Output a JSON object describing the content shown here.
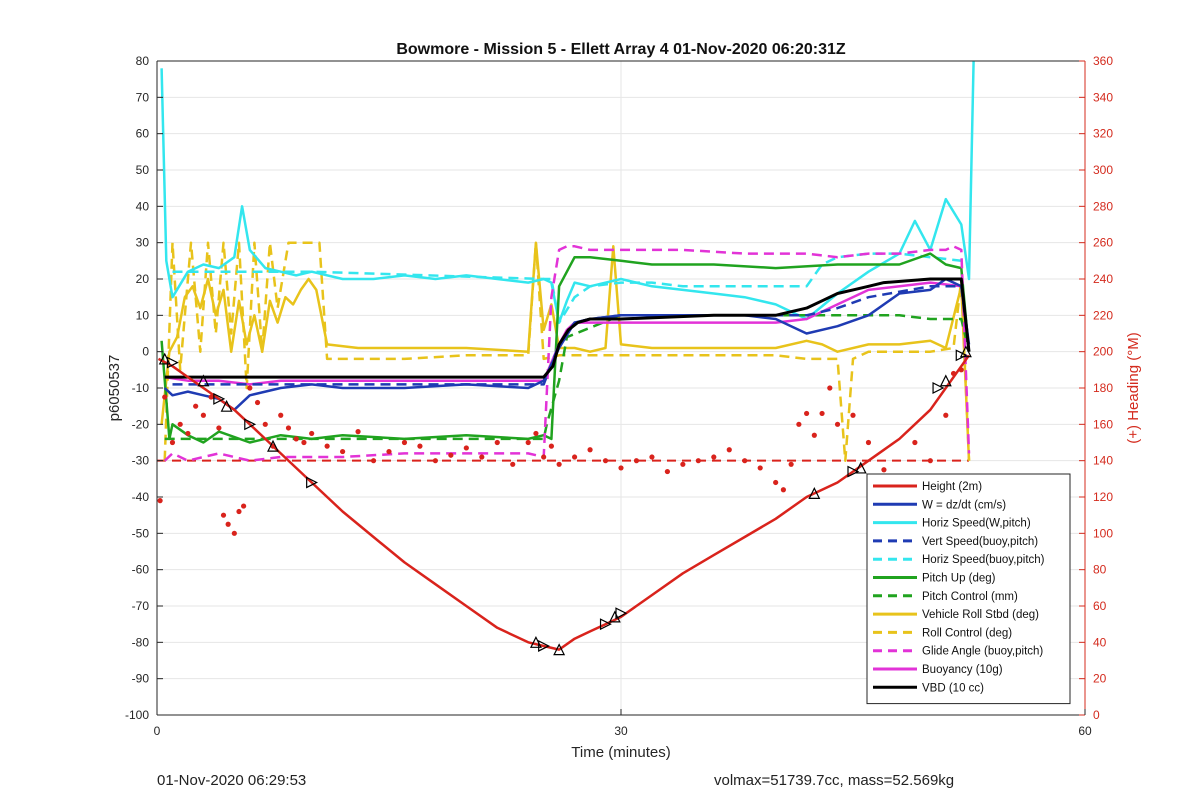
{
  "chart_data": {
    "type": "line",
    "title": "Bowmore - Mission 5 - Ellett Array 4 01-Nov-2020 06:20:31Z",
    "xlabel": "Time (minutes)",
    "ylabel": "p6050537",
    "y2label": "(+) Heading (°M)",
    "xlim": [
      0,
      60
    ],
    "ylim": [
      -100,
      80
    ],
    "y2lim": [
      0,
      360
    ],
    "xticks": [
      0,
      30,
      60
    ],
    "yticks": [
      -100,
      -90,
      -80,
      -70,
      -60,
      -50,
      -40,
      -30,
      -20,
      -10,
      0,
      10,
      20,
      30,
      40,
      50,
      60,
      70,
      80
    ],
    "y2ticks": [
      0,
      20,
      40,
      60,
      80,
      100,
      120,
      140,
      160,
      180,
      200,
      220,
      240,
      260,
      280,
      300,
      320,
      340,
      360
    ],
    "grid": true,
    "legend_position": "bottom-right",
    "colors": {
      "axes": "#262626",
      "right_axis": "#d42b1e",
      "grid": "#e6e6e6"
    },
    "series": [
      {
        "name": "Height (2m)",
        "color": "#d9231c",
        "style": "solid",
        "x": [
          0.1,
          1,
          2,
          3,
          4,
          5,
          6,
          7,
          8,
          10,
          12,
          14,
          16,
          18,
          20,
          22,
          24,
          25,
          26,
          27,
          28,
          29,
          30,
          32,
          34,
          36,
          38,
          40,
          42,
          44,
          45,
          46,
          47,
          48,
          49,
          50,
          51,
          52,
          52.5
        ],
        "y": [
          -2,
          -4,
          -7,
          -10,
          -13,
          -16,
          -20,
          -24,
          -28,
          -36,
          -44,
          -51,
          -58,
          -64,
          -70,
          -76,
          -80,
          -81,
          -82,
          -79,
          -77,
          -75,
          -73,
          -67,
          -61,
          -56,
          -51,
          -46,
          -40,
          -36,
          -33,
          -30,
          -27,
          -24,
          -20,
          -16,
          -10,
          -4,
          -1
        ]
      },
      {
        "name": "W = dz/dt (cm/s)",
        "color": "#1f3bb3",
        "style": "solid",
        "x": [
          0.5,
          1,
          2,
          3,
          4,
          5,
          6,
          8,
          10,
          12,
          16,
          20,
          24,
          25,
          26,
          27,
          28,
          30,
          32,
          34,
          36,
          38,
          40,
          41,
          42,
          44,
          46,
          48,
          50,
          51,
          52,
          52.5
        ],
        "y": [
          -10,
          -12,
          -11,
          -12,
          -13,
          -16,
          -12,
          -10,
          -9,
          -10,
          -10,
          -9,
          -10,
          -8,
          1,
          8,
          9,
          10,
          10,
          10,
          10,
          10,
          9,
          7,
          5,
          7,
          10,
          16,
          17,
          20,
          18,
          2
        ]
      },
      {
        "name": "Horiz Speed(W,pitch)",
        "color": "#33e6ee",
        "style": "solid",
        "x": [
          0.3,
          0.6,
          1,
          2,
          3,
          4,
          5,
          5.5,
          6,
          7,
          8,
          9,
          10,
          12,
          14,
          16,
          18,
          20,
          22,
          24,
          25,
          25.5,
          26,
          26.5,
          27,
          28,
          30,
          32,
          34,
          36,
          38,
          40,
          42,
          44,
          46,
          48,
          49,
          50,
          51,
          52,
          52.5,
          52.8
        ],
        "y": [
          78,
          25,
          15,
          22,
          24,
          23,
          26,
          40,
          28,
          23,
          22,
          21,
          22,
          20,
          20,
          21,
          20,
          21,
          20,
          19,
          20,
          19,
          8,
          14,
          19,
          18,
          20,
          18,
          17,
          16,
          15,
          13,
          9,
          16,
          22,
          27,
          36,
          28,
          42,
          35,
          20,
          80
        ]
      },
      {
        "name": "Vert Speed(buoy,pitch)",
        "color": "#1f3bb3",
        "style": "dashed",
        "x": [
          1,
          25,
          26,
          27,
          28,
          30,
          32,
          34,
          40,
          42,
          44,
          46,
          50,
          52,
          52.5
        ],
        "y": [
          -9,
          -9,
          2,
          8,
          9,
          10,
          10,
          10,
          10,
          10,
          12,
          15,
          18,
          18,
          0
        ]
      },
      {
        "name": "Horiz Speed(buoy,pitch)",
        "color": "#33e6ee",
        "style": "dashed",
        "x": [
          1,
          4,
          10,
          25,
          25.5,
          26,
          27,
          28,
          30,
          32,
          34,
          36,
          38,
          40,
          42,
          43,
          44,
          46,
          48,
          50,
          52
        ],
        "y": [
          22,
          22,
          22,
          20,
          20,
          8,
          15,
          18,
          19,
          19,
          18,
          18,
          18,
          18,
          18,
          24,
          26,
          27,
          27,
          26,
          25
        ]
      },
      {
        "name": "Pitch Up (deg)",
        "color": "#20a31f",
        "style": "solid",
        "x": [
          0.3,
          0.8,
          1,
          2,
          3,
          4,
          6,
          8,
          10,
          12,
          16,
          20,
          24,
          25,
          25.5,
          26,
          27,
          28,
          30,
          32,
          34,
          36,
          40,
          44,
          48,
          50,
          51,
          52,
          52.5
        ],
        "y": [
          3,
          -24,
          -20,
          -23,
          -25,
          -22,
          -25,
          -23,
          -24,
          -23,
          -24,
          -23,
          -24,
          -23,
          -24,
          18,
          26,
          26,
          25,
          24,
          24,
          24,
          23,
          24,
          24,
          27,
          24,
          23,
          0
        ]
      },
      {
        "name": "Pitch Control (mm)",
        "color": "#20a31f",
        "style": "dashed",
        "x": [
          0.5,
          25,
          25.2,
          26,
          26.5,
          30,
          36,
          40,
          42,
          44,
          48,
          50,
          52,
          52.5
        ],
        "y": [
          -24,
          -24,
          -20,
          -8,
          4,
          10,
          10,
          10,
          10,
          10,
          10,
          9,
          9,
          0
        ]
      },
      {
        "name": "Vehicle Roll Stbd (deg)",
        "color": "#e8c31b",
        "style": "solid",
        "x": [
          0.3,
          0.8,
          1.3,
          1.8,
          2.3,
          2.8,
          3.3,
          3.8,
          4.3,
          4.8,
          5.3,
          5.8,
          6.3,
          6.8,
          7.3,
          7.8,
          8.3,
          8.8,
          9.3,
          9.8,
          10.3,
          11,
          13,
          16,
          20,
          24,
          24.5,
          25,
          25.5,
          26,
          27,
          28,
          29,
          29.5,
          30,
          32,
          36,
          40,
          42,
          43,
          44,
          46,
          48,
          50,
          51,
          52,
          52.5
        ],
        "y": [
          -20,
          0,
          4,
          15,
          18,
          12,
          20,
          10,
          17,
          0,
          14,
          2,
          10,
          0,
          14,
          8,
          15,
          13,
          17,
          20,
          17,
          2,
          1,
          1,
          1,
          0,
          30,
          6,
          13,
          1,
          1,
          0,
          1,
          29,
          2,
          1,
          1,
          1,
          3,
          2,
          0,
          2,
          2,
          3,
          1,
          18,
          -30
        ]
      },
      {
        "name": "Roll Control (deg)",
        "color": "#e8c31b",
        "style": "dashed",
        "x": [
          0.5,
          1,
          1.5,
          2.2,
          2.8,
          3.3,
          3.8,
          4.3,
          4.8,
          5.3,
          5.8,
          6.3,
          6.8,
          7.3,
          7.8,
          8.5,
          9,
          9.5,
          10,
          10.5,
          11,
          16,
          20,
          24,
          24.5,
          25,
          26,
          30,
          36,
          40,
          42,
          44,
          44.5,
          45,
          46,
          48,
          50,
          51.5,
          52,
          52.5
        ],
        "y": [
          -30,
          30,
          -5,
          30,
          0,
          30,
          5,
          30,
          5,
          30,
          -10,
          30,
          0,
          30,
          12,
          30,
          30,
          30,
          30,
          30,
          -2,
          -2,
          -1,
          -1,
          30,
          -2,
          -1,
          -1,
          -1,
          -1,
          -2,
          -2,
          -30,
          -2,
          0,
          0,
          0,
          1,
          20,
          -30
        ]
      },
      {
        "name": "Glide Angle (buoy,pitch)",
        "color": "#e233d7",
        "style": "dashed",
        "x": [
          0.5,
          1,
          2,
          3,
          4,
          6,
          8,
          12,
          16,
          20,
          24,
          25,
          25.5,
          26,
          26.5,
          27,
          28,
          30,
          34,
          38,
          42,
          44,
          46,
          48,
          50,
          51,
          51.5,
          52,
          52.5
        ],
        "y": [
          -30,
          -28,
          -30,
          -29,
          -28,
          -30,
          -29,
          -29,
          -28,
          -28,
          -28,
          -29,
          15,
          28,
          29,
          29,
          28,
          28,
          28,
          27,
          27,
          26,
          27,
          27,
          28,
          28,
          29,
          28,
          -28
        ]
      },
      {
        "name": "Buoyancy (10g)",
        "color": "#e233d7",
        "style": "solid",
        "x": [
          0.5,
          2,
          4,
          6,
          8,
          12,
          16,
          20,
          24,
          25,
          26,
          26.5,
          27,
          28,
          30,
          36,
          40,
          42,
          44,
          46,
          50,
          52,
          52.5
        ],
        "y": [
          -7,
          -8,
          -8,
          -9,
          -8,
          -8,
          -8,
          -8,
          -8,
          -8,
          2,
          6,
          8,
          8,
          8,
          8,
          8,
          9,
          13,
          17,
          19,
          18,
          0
        ]
      },
      {
        "name": "VBD (10 cc)",
        "color": "#000000",
        "style": "solid",
        "x": [
          0.5,
          2,
          6,
          12,
          16,
          20,
          24,
          25,
          25.6,
          26,
          26.6,
          27.2,
          28,
          30,
          36,
          40,
          41,
          42,
          43,
          44,
          45,
          46,
          47,
          50,
          52,
          52.5
        ],
        "y": [
          -7,
          -7,
          -7,
          -7,
          -7,
          -7,
          -7,
          -7,
          -4,
          2,
          6,
          8,
          9,
          9,
          10,
          10,
          11,
          12,
          14,
          16,
          17,
          18,
          19,
          20,
          20,
          0
        ]
      }
    ],
    "red_dashed_heading_line": {
      "y2": 140
    },
    "heading_points": {
      "name": "Heading",
      "color": "#d9231c",
      "x": [
        0.2,
        0.5,
        1,
        1.5,
        2,
        2.5,
        3,
        3.5,
        4,
        4.3,
        4.6,
        5,
        5.3,
        5.6,
        6,
        6.5,
        7,
        7.5,
        8,
        8.5,
        9,
        9.5,
        10,
        11,
        12,
        13,
        14,
        15,
        16,
        17,
        18,
        19,
        20,
        21,
        22,
        23,
        24,
        24.5,
        25,
        25.5,
        26,
        27,
        28,
        29,
        30,
        31,
        32,
        33,
        34,
        35,
        36,
        37,
        38,
        39,
        40,
        40.5,
        41,
        41.5,
        42,
        42.5,
        43,
        43.5,
        44,
        45,
        46,
        47,
        48,
        49,
        50,
        51,
        51.5,
        52
      ],
      "y2": [
        118,
        175,
        150,
        160,
        155,
        170,
        165,
        175,
        158,
        110,
        105,
        100,
        112,
        115,
        180,
        172,
        160,
        148,
        165,
        158,
        152,
        150,
        155,
        148,
        145,
        156,
        140,
        145,
        150,
        148,
        140,
        143,
        147,
        142,
        150,
        138,
        150,
        155,
        142,
        148,
        138,
        142,
        146,
        140,
        136,
        140,
        142,
        134,
        138,
        140,
        142,
        146,
        140,
        136,
        128,
        124,
        138,
        160,
        166,
        154,
        166,
        180,
        160,
        165,
        150,
        135,
        130,
        150,
        140,
        165,
        188,
        190
      ]
    },
    "marker_points": {
      "x": [
        0.5,
        1,
        3,
        4,
        4.5,
        6,
        7.5,
        10,
        24.5,
        25,
        26,
        29,
        29.6,
        30,
        42.5,
        45,
        45.5,
        50.5,
        51,
        52,
        52.3
      ],
      "y": [
        -2,
        -3,
        -8,
        -13,
        -15,
        -20,
        -26,
        -36,
        -80,
        -81,
        -82,
        -75,
        -73,
        -72,
        -39,
        -33,
        -32,
        -10,
        -8,
        -1,
        0
      ]
    },
    "footer_left": "01-Nov-2020 06:29:53",
    "footer_right": "volmax=51739.7cc, mass=52.569kg"
  }
}
